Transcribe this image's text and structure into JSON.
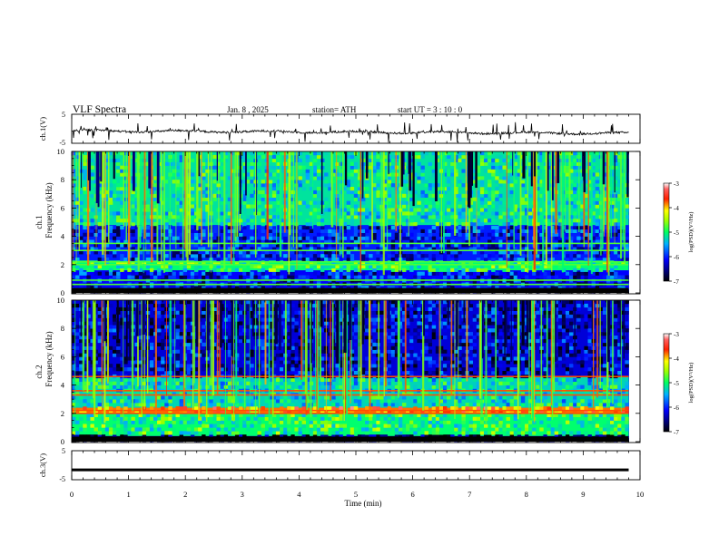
{
  "header": {
    "title": "VLF  Spectra",
    "date": "Jan.  8  , 2025",
    "station": "station= ATH",
    "start_ut": "start  UT  =    3  : 10 : 0"
  },
  "chart_data": [
    {
      "type": "line",
      "panel": "ch1-waveform",
      "ylabel": "ch.1(V)",
      "ylim": [
        -5,
        5
      ],
      "yticks": [
        "5",
        "-5"
      ],
      "xlim": [
        0,
        10
      ],
      "color": "#000000",
      "description_values": {
        "baseline_v": -0.7,
        "trend_end_v": -1.6,
        "spikes": "frequent narrow spikes up to about ±4 V"
      }
    },
    {
      "type": "heatmap",
      "panel": "ch1-spectrogram",
      "ylabel": "ch.1\nFrequency (kHz)",
      "ylabel_top": "ch.1",
      "ylabel_bottom": "Frequency (kHz)",
      "ylim": [
        0,
        10
      ],
      "yticks": [
        "0",
        "2",
        "4",
        "6",
        "8",
        "10"
      ],
      "xlim": [
        0,
        9.8
      ],
      "colorbar_label": "log(PSD)(V²/Hz)",
      "colorbar_range": [
        -7,
        -3
      ],
      "colorbar_ticks": [
        "-3",
        "-4",
        "-5",
        "-6",
        "-7"
      ],
      "bands": [
        {
          "from_khz": 0.0,
          "to_khz": 0.3,
          "level": -7.0
        },
        {
          "from_khz": 0.3,
          "to_khz": 1.6,
          "level": -6.2
        },
        {
          "from_khz": 1.6,
          "to_khz": 2.3,
          "level": -5.0
        },
        {
          "from_khz": 2.3,
          "to_khz": 4.8,
          "level": -6.1
        },
        {
          "from_khz": 4.8,
          "to_khz": 10.0,
          "level": -5.2
        }
      ],
      "lines_khz": [
        0.3,
        0.6,
        0.9,
        2.0,
        2.2,
        3.0,
        3.5
      ]
    },
    {
      "type": "heatmap",
      "panel": "ch2-spectrogram",
      "ylabel_top": "ch.2",
      "ylabel_bottom": "Frequency (kHz)",
      "ylim": [
        0,
        10
      ],
      "yticks": [
        "0",
        "2",
        "4",
        "6",
        "8",
        "10"
      ],
      "xlim": [
        0,
        9.8
      ],
      "colorbar_label": "log(PSD)(V²/Hz)",
      "colorbar_range": [
        -7,
        -3
      ],
      "colorbar_ticks": [
        "-3",
        "-4",
        "-5",
        "-6",
        "-7"
      ],
      "bands": [
        {
          "from_khz": 0.0,
          "to_khz": 0.4,
          "level": -6.8
        },
        {
          "from_khz": 0.4,
          "to_khz": 2.0,
          "level": -5.0
        },
        {
          "from_khz": 2.0,
          "to_khz": 2.4,
          "level": -3.8
        },
        {
          "from_khz": 2.4,
          "to_khz": 4.6,
          "level": -5.3
        },
        {
          "from_khz": 4.6,
          "to_khz": 10.0,
          "level": -6.3
        }
      ],
      "lines_khz": [
        2.0,
        2.2,
        3.3,
        3.6,
        4.6
      ]
    },
    {
      "type": "line",
      "panel": "ch3-waveform",
      "ylabel": "ch.3(V)",
      "ylim": [
        -5,
        5
      ],
      "yticks": [
        "5",
        "-5"
      ],
      "xlim": [
        0,
        10
      ],
      "color": "#000000",
      "description_values": {
        "baseline_v": -1.6
      }
    }
  ],
  "xaxis": {
    "label": "Time  (min)",
    "ticks": [
      "0",
      "1",
      "2",
      "3",
      "4",
      "5",
      "6",
      "7",
      "8",
      "9",
      "10"
    ],
    "range": [
      0,
      10
    ]
  }
}
